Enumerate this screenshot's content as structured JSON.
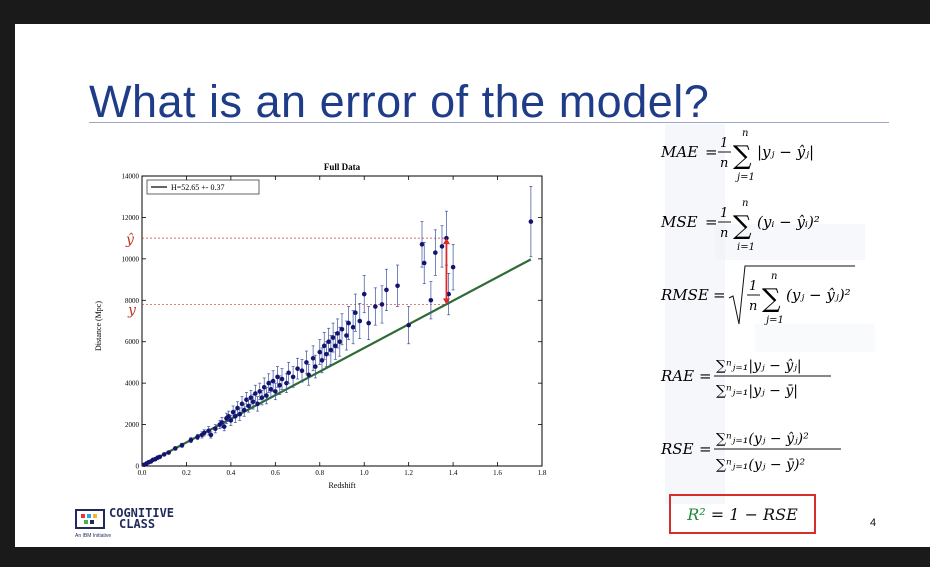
{
  "slide": {
    "title": "What is an error of the model?",
    "page_number": "4",
    "logo": {
      "text_line1": "COGNITIVE",
      "text_line2": "CLASS",
      "sub": "An IBM Initiative"
    }
  },
  "formulas": {
    "mae": "MAE",
    "mse": "MSE",
    "rmse": "RMSE",
    "rae": "RAE",
    "rse": "RSE",
    "r2": "R² = 1 − RSE"
  },
  "chart_data": {
    "type": "scatter",
    "title": "Full Data",
    "xlabel": "Redshift",
    "ylabel": "Distance (Mpc)",
    "xlim": [
      0.0,
      1.8
    ],
    "ylim": [
      0,
      14000
    ],
    "xticks": [
      "0.0",
      "0.2",
      "0.4",
      "0.6",
      "0.8",
      "1.0",
      "1.2",
      "1.4",
      "1.6",
      "1.8"
    ],
    "yticks": [
      "0",
      "2000",
      "4000",
      "6000",
      "8000",
      "10000",
      "12000",
      "14000"
    ],
    "legend": {
      "label": "H=52.65 +- 0.37",
      "placement": "top-left"
    },
    "fit_line": {
      "slope": 5700,
      "x": [
        0.0,
        1.75
      ],
      "color": "#2e6b35"
    },
    "annotations": {
      "yhat_label": "ŷ",
      "y_label": "y",
      "yhat_value": 11000,
      "y_value": 7800,
      "arrow_x": 1.37,
      "label_color": "#c0392b"
    },
    "points": [
      [
        0.01,
        60,
        0
      ],
      [
        0.02,
        120,
        0
      ],
      [
        0.03,
        180,
        0
      ],
      [
        0.04,
        220,
        0
      ],
      [
        0.05,
        300,
        0
      ],
      [
        0.06,
        330,
        0
      ],
      [
        0.07,
        400,
        0
      ],
      [
        0.08,
        440,
        50
      ],
      [
        0.1,
        560,
        60
      ],
      [
        0.12,
        650,
        60
      ],
      [
        0.15,
        850,
        80
      ],
      [
        0.18,
        1000,
        100
      ],
      [
        0.22,
        1250,
        120
      ],
      [
        0.25,
        1400,
        130
      ],
      [
        0.27,
        1500,
        150
      ],
      [
        0.28,
        1600,
        150
      ],
      [
        0.3,
        1700,
        200
      ],
      [
        0.31,
        1500,
        150
      ],
      [
        0.33,
        1800,
        200
      ],
      [
        0.35,
        2000,
        200
      ],
      [
        0.36,
        2100,
        250
      ],
      [
        0.37,
        1900,
        200
      ],
      [
        0.38,
        2300,
        250
      ],
      [
        0.39,
        2400,
        250
      ],
      [
        0.4,
        2200,
        250
      ],
      [
        0.41,
        2600,
        300
      ],
      [
        0.42,
        2400,
        300
      ],
      [
        0.43,
        2800,
        300
      ],
      [
        0.44,
        2500,
        300
      ],
      [
        0.45,
        3000,
        350
      ],
      [
        0.46,
        2700,
        300
      ],
      [
        0.47,
        3200,
        350
      ],
      [
        0.48,
        2900,
        300
      ],
      [
        0.49,
        3300,
        350
      ],
      [
        0.5,
        3100,
        350
      ],
      [
        0.51,
        3500,
        400
      ],
      [
        0.52,
        3000,
        350
      ],
      [
        0.53,
        3600,
        400
      ],
      [
        0.54,
        3300,
        350
      ],
      [
        0.55,
        3800,
        450
      ],
      [
        0.56,
        3400,
        400
      ],
      [
        0.57,
        4000,
        450
      ],
      [
        0.58,
        3700,
        400
      ],
      [
        0.59,
        4100,
        500
      ],
      [
        0.6,
        3600,
        400
      ],
      [
        0.61,
        4300,
        500
      ],
      [
        0.62,
        3900,
        450
      ],
      [
        0.63,
        4200,
        500
      ],
      [
        0.65,
        4000,
        450
      ],
      [
        0.66,
        4500,
        500
      ],
      [
        0.68,
        4300,
        500
      ],
      [
        0.7,
        4700,
        500
      ],
      [
        0.72,
        4600,
        550
      ],
      [
        0.74,
        5000,
        550
      ],
      [
        0.75,
        4400,
        500
      ],
      [
        0.77,
        5200,
        600
      ],
      [
        0.78,
        4800,
        550
      ],
      [
        0.8,
        5500,
        600
      ],
      [
        0.81,
        5100,
        600
      ],
      [
        0.82,
        5800,
        650
      ],
      [
        0.83,
        5400,
        600
      ],
      [
        0.84,
        6000,
        650
      ],
      [
        0.85,
        5600,
        700
      ],
      [
        0.86,
        6200,
        700
      ],
      [
        0.87,
        5800,
        650
      ],
      [
        0.88,
        6400,
        700
      ],
      [
        0.89,
        6000,
        700
      ],
      [
        0.9,
        6600,
        750
      ],
      [
        0.92,
        6300,
        700
      ],
      [
        0.93,
        6900,
        800
      ],
      [
        0.95,
        6700,
        800
      ],
      [
        0.96,
        7400,
        900
      ],
      [
        0.98,
        7000,
        850
      ],
      [
        1.0,
        8300,
        900
      ],
      [
        1.02,
        6900,
        800
      ],
      [
        1.05,
        7700,
        900
      ],
      [
        1.08,
        7800,
        900
      ],
      [
        1.1,
        8500,
        1000
      ],
      [
        1.15,
        8700,
        1000
      ],
      [
        1.2,
        6800,
        900
      ],
      [
        1.26,
        10700,
        1100
      ],
      [
        1.27,
        9800,
        1000
      ],
      [
        1.3,
        8000,
        900
      ],
      [
        1.32,
        10300,
        1100
      ],
      [
        1.35,
        10600,
        1000
      ],
      [
        1.37,
        11000,
        1300
      ],
      [
        1.38,
        8300,
        1000
      ],
      [
        1.4,
        9600,
        1100
      ],
      [
        1.75,
        11800,
        1700
      ]
    ]
  }
}
